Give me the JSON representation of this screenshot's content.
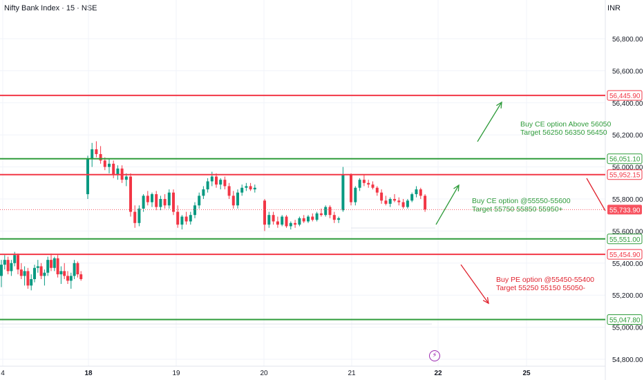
{
  "header": {
    "title": "Nifty Bank Index · 15 · NSE",
    "currency": "INR"
  },
  "icons": {
    "bolt": "⚡"
  },
  "colors": {
    "up": "#089981",
    "down": "#f23645",
    "green_level": "#2e9b3a",
    "red_level": "#f23645",
    "last_price": "#f7525f",
    "axis_text": "#131722",
    "grid": "#f0f3fa"
  },
  "chart_data": {
    "type": "candlestick",
    "ylim": [
      54750,
      57000
    ],
    "x_ticks": [
      "4",
      "18",
      "19",
      "20",
      "21",
      "22",
      "25"
    ],
    "y_ticks": [
      {
        "value": 56800,
        "label": "56,800.00"
      },
      {
        "value": 56600,
        "label": "56,600.00"
      },
      {
        "value": 56400,
        "label": "56,400.00"
      },
      {
        "value": 56200,
        "label": "56,200.00"
      },
      {
        "value": 56000,
        "label": "56,000.00"
      },
      {
        "value": 55800,
        "label": "55,800.00"
      },
      {
        "value": 55600,
        "label": "55,600.00"
      },
      {
        "value": 55400,
        "label": "55,400.00"
      },
      {
        "value": 55200,
        "label": "55,200.00"
      },
      {
        "value": 55000,
        "label": "55,000.00"
      },
      {
        "value": 54800,
        "label": "54,800.00"
      }
    ],
    "levels": [
      {
        "value": 56445.9,
        "label": "56,445.90",
        "color": "red"
      },
      {
        "value": 56051.1,
        "label": "56,051.10",
        "color": "green"
      },
      {
        "value": 55952.15,
        "label": "55,952.15",
        "color": "red"
      },
      {
        "value": 55551.0,
        "label": "55,551.00",
        "color": "green"
      },
      {
        "value": 55454.9,
        "label": "55,454.90",
        "color": "red"
      },
      {
        "value": 55047.8,
        "label": "55,047.80",
        "color": "green"
      }
    ],
    "last_price": {
      "value": 55733.9,
      "label": "55,733.90"
    },
    "annotations": [
      {
        "lines": [
          "Buy CE option Above 56050",
          "Target 56250 56350 56450"
        ],
        "color": "green"
      },
      {
        "lines": [
          "Buy CE option @55550-55600",
          "Target 55750 55850 55950+"
        ],
        "color": "green"
      },
      {
        "lines": [
          "Buy PE option @55450-55400",
          "Target 55250 55150 55050-"
        ],
        "color": "red"
      }
    ],
    "candles": [
      [
        55320,
        55420,
        55250,
        55390
      ],
      [
        55390,
        55450,
        55360,
        55420
      ],
      [
        55420,
        55440,
        55330,
        55350
      ],
      [
        55350,
        55420,
        55320,
        55400
      ],
      [
        55400,
        55470,
        55380,
        55450
      ],
      [
        55450,
        55460,
        55330,
        55360
      ],
      [
        55360,
        55400,
        55300,
        55320
      ],
      [
        55320,
        55380,
        55260,
        55350
      ],
      [
        55350,
        55370,
        55240,
        55260
      ],
      [
        55260,
        55330,
        55230,
        55300
      ],
      [
        55300,
        55390,
        55280,
        55370
      ],
      [
        55370,
        55420,
        55340,
        55380
      ],
      [
        55380,
        55400,
        55300,
        55320
      ],
      [
        55320,
        55360,
        55260,
        55340
      ],
      [
        55340,
        55440,
        55320,
        55420
      ],
      [
        55420,
        55460,
        55350,
        55370
      ],
      [
        55370,
        55440,
        55350,
        55430
      ],
      [
        55430,
        55450,
        55310,
        55330
      ],
      [
        55330,
        55380,
        55270,
        55350
      ],
      [
        55350,
        55400,
        55300,
        55320
      ],
      [
        55320,
        55350,
        55270,
        55290
      ],
      [
        55290,
        55340,
        55240,
        55320
      ],
      [
        55320,
        55420,
        55300,
        55400
      ],
      [
        55400,
        55410,
        55310,
        55330
      ],
      [
        55330,
        55350,
        55290,
        55300
      ],
      [
        55830,
        56070,
        55800,
        56050
      ],
      [
        56050,
        56150,
        56000,
        56110
      ],
      [
        56110,
        56160,
        56060,
        56080
      ],
      [
        56080,
        56130,
        56020,
        56040
      ],
      [
        56040,
        56060,
        55980,
        56000
      ],
      [
        56000,
        56050,
        55960,
        56020
      ],
      [
        56020,
        56040,
        55930,
        55950
      ],
      [
        55950,
        56010,
        55920,
        55990
      ],
      [
        55990,
        56010,
        55900,
        55920
      ],
      [
        55920,
        55960,
        55880,
        55940
      ],
      [
        55940,
        55960,
        55690,
        55720
      ],
      [
        55720,
        55760,
        55620,
        55650
      ],
      [
        55650,
        55760,
        55630,
        55740
      ],
      [
        55740,
        55830,
        55720,
        55820
      ],
      [
        55820,
        55850,
        55760,
        55780
      ],
      [
        55780,
        55840,
        55750,
        55830
      ],
      [
        55830,
        55850,
        55730,
        55750
      ],
      [
        55750,
        55820,
        55730,
        55800
      ],
      [
        55800,
        55830,
        55740,
        55760
      ],
      [
        55760,
        55860,
        55740,
        55840
      ],
      [
        55840,
        55860,
        55700,
        55720
      ],
      [
        55720,
        55760,
        55620,
        55640
      ],
      [
        55640,
        55700,
        55610,
        55690
      ],
      [
        55690,
        55720,
        55640,
        55660
      ],
      [
        55660,
        55720,
        55640,
        55700
      ],
      [
        55700,
        55780,
        55680,
        55760
      ],
      [
        55760,
        55840,
        55740,
        55820
      ],
      [
        55820,
        55880,
        55800,
        55860
      ],
      [
        55860,
        55930,
        55840,
        55910
      ],
      [
        55910,
        55970,
        55880,
        55940
      ],
      [
        55940,
        55960,
        55870,
        55890
      ],
      [
        55890,
        55930,
        55860,
        55920
      ],
      [
        55920,
        55940,
        55860,
        55880
      ],
      [
        55880,
        55900,
        55800,
        55820
      ],
      [
        55820,
        55850,
        55740,
        55760
      ],
      [
        55760,
        55860,
        55740,
        55840
      ],
      [
        55840,
        55890,
        55820,
        55870
      ],
      [
        55870,
        55900,
        55850,
        55880
      ],
      [
        55880,
        55900,
        55850,
        55860
      ],
      [
        55860,
        55890,
        55840,
        55870
      ],
      [
        55790,
        55800,
        55600,
        55640
      ],
      [
        55640,
        55720,
        55620,
        55700
      ],
      [
        55700,
        55720,
        55640,
        55660
      ],
      [
        55660,
        55690,
        55620,
        55640
      ],
      [
        55640,
        55700,
        55630,
        55690
      ],
      [
        55690,
        55700,
        55620,
        55630
      ],
      [
        55630,
        55660,
        55610,
        55650
      ],
      [
        55650,
        55670,
        55620,
        55640
      ],
      [
        55640,
        55690,
        55630,
        55680
      ],
      [
        55680,
        55700,
        55650,
        55660
      ],
      [
        55660,
        55700,
        55650,
        55690
      ],
      [
        55690,
        55710,
        55660,
        55670
      ],
      [
        55670,
        55720,
        55660,
        55710
      ],
      [
        55710,
        55740,
        55690,
        55700
      ],
      [
        55700,
        55760,
        55690,
        55750
      ],
      [
        55750,
        55760,
        55680,
        55700
      ],
      [
        55700,
        55720,
        55650,
        55670
      ],
      [
        55670,
        55690,
        55650,
        55680
      ],
      [
        55730,
        56000,
        55720,
        55950
      ],
      [
        55950,
        55960,
        55760,
        55780
      ],
      [
        55780,
        55880,
        55760,
        55870
      ],
      [
        55870,
        55930,
        55850,
        55920
      ],
      [
        55920,
        55950,
        55880,
        55900
      ],
      [
        55900,
        55920,
        55870,
        55890
      ],
      [
        55890,
        55910,
        55860,
        55870
      ],
      [
        55870,
        55880,
        55820,
        55840
      ],
      [
        55840,
        55860,
        55770,
        55790
      ],
      [
        55790,
        55820,
        55760,
        55770
      ],
      [
        55770,
        55810,
        55750,
        55800
      ],
      [
        55800,
        55830,
        55780,
        55790
      ],
      [
        55790,
        55810,
        55760,
        55780
      ],
      [
        55780,
        55800,
        55740,
        55750
      ],
      [
        55750,
        55800,
        55740,
        55790
      ],
      [
        55790,
        55840,
        55780,
        55830
      ],
      [
        55830,
        55880,
        55810,
        55860
      ],
      [
        55860,
        55870,
        55800,
        55820
      ],
      [
        55820,
        55830,
        55720,
        55734
      ]
    ]
  }
}
